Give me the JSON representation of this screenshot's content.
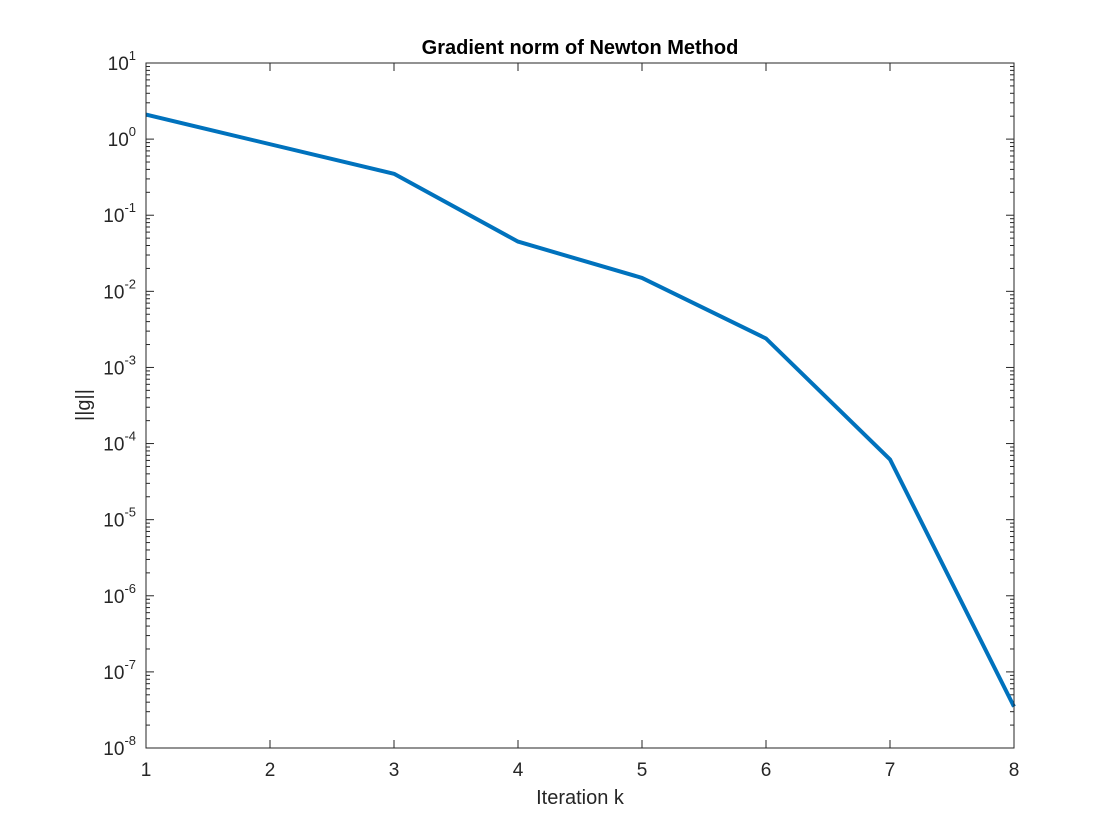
{
  "chart_data": {
    "type": "line",
    "title": "Gradient norm of Newton Method",
    "xlabel": "Iteration k",
    "ylabel": "||g||",
    "xlim": [
      1,
      8
    ],
    "ylim": [
      1e-08,
      10
    ],
    "yscale": "log",
    "grid": false,
    "legend": "none",
    "x_ticks": [
      1,
      2,
      3,
      4,
      5,
      6,
      7,
      8
    ],
    "x_tick_labels": [
      "1",
      "2",
      "3",
      "4",
      "5",
      "6",
      "7",
      "8"
    ],
    "y_ticks": [
      {
        "value": 10,
        "base": "10",
        "exponent": "1"
      },
      {
        "value": 1,
        "base": "10",
        "exponent": "0"
      },
      {
        "value": 0.1,
        "base": "10",
        "exponent": "-1"
      },
      {
        "value": 0.01,
        "base": "10",
        "exponent": "-2"
      },
      {
        "value": 0.001,
        "base": "10",
        "exponent": "-3"
      },
      {
        "value": 0.0001,
        "base": "10",
        "exponent": "-4"
      },
      {
        "value": 1e-05,
        "base": "10",
        "exponent": "-5"
      },
      {
        "value": 1e-06,
        "base": "10",
        "exponent": "-6"
      },
      {
        "value": 1e-07,
        "base": "10",
        "exponent": "-7"
      },
      {
        "value": 1e-08,
        "base": "10",
        "exponent": "-8"
      }
    ],
    "series": [
      {
        "x": [
          1,
          3,
          4,
          5,
          6,
          7,
          8
        ],
        "y": [
          2.1,
          0.35,
          0.045,
          0.015,
          0.0024,
          6.2e-05,
          3.5e-08
        ],
        "color": "#0072BD"
      }
    ]
  }
}
